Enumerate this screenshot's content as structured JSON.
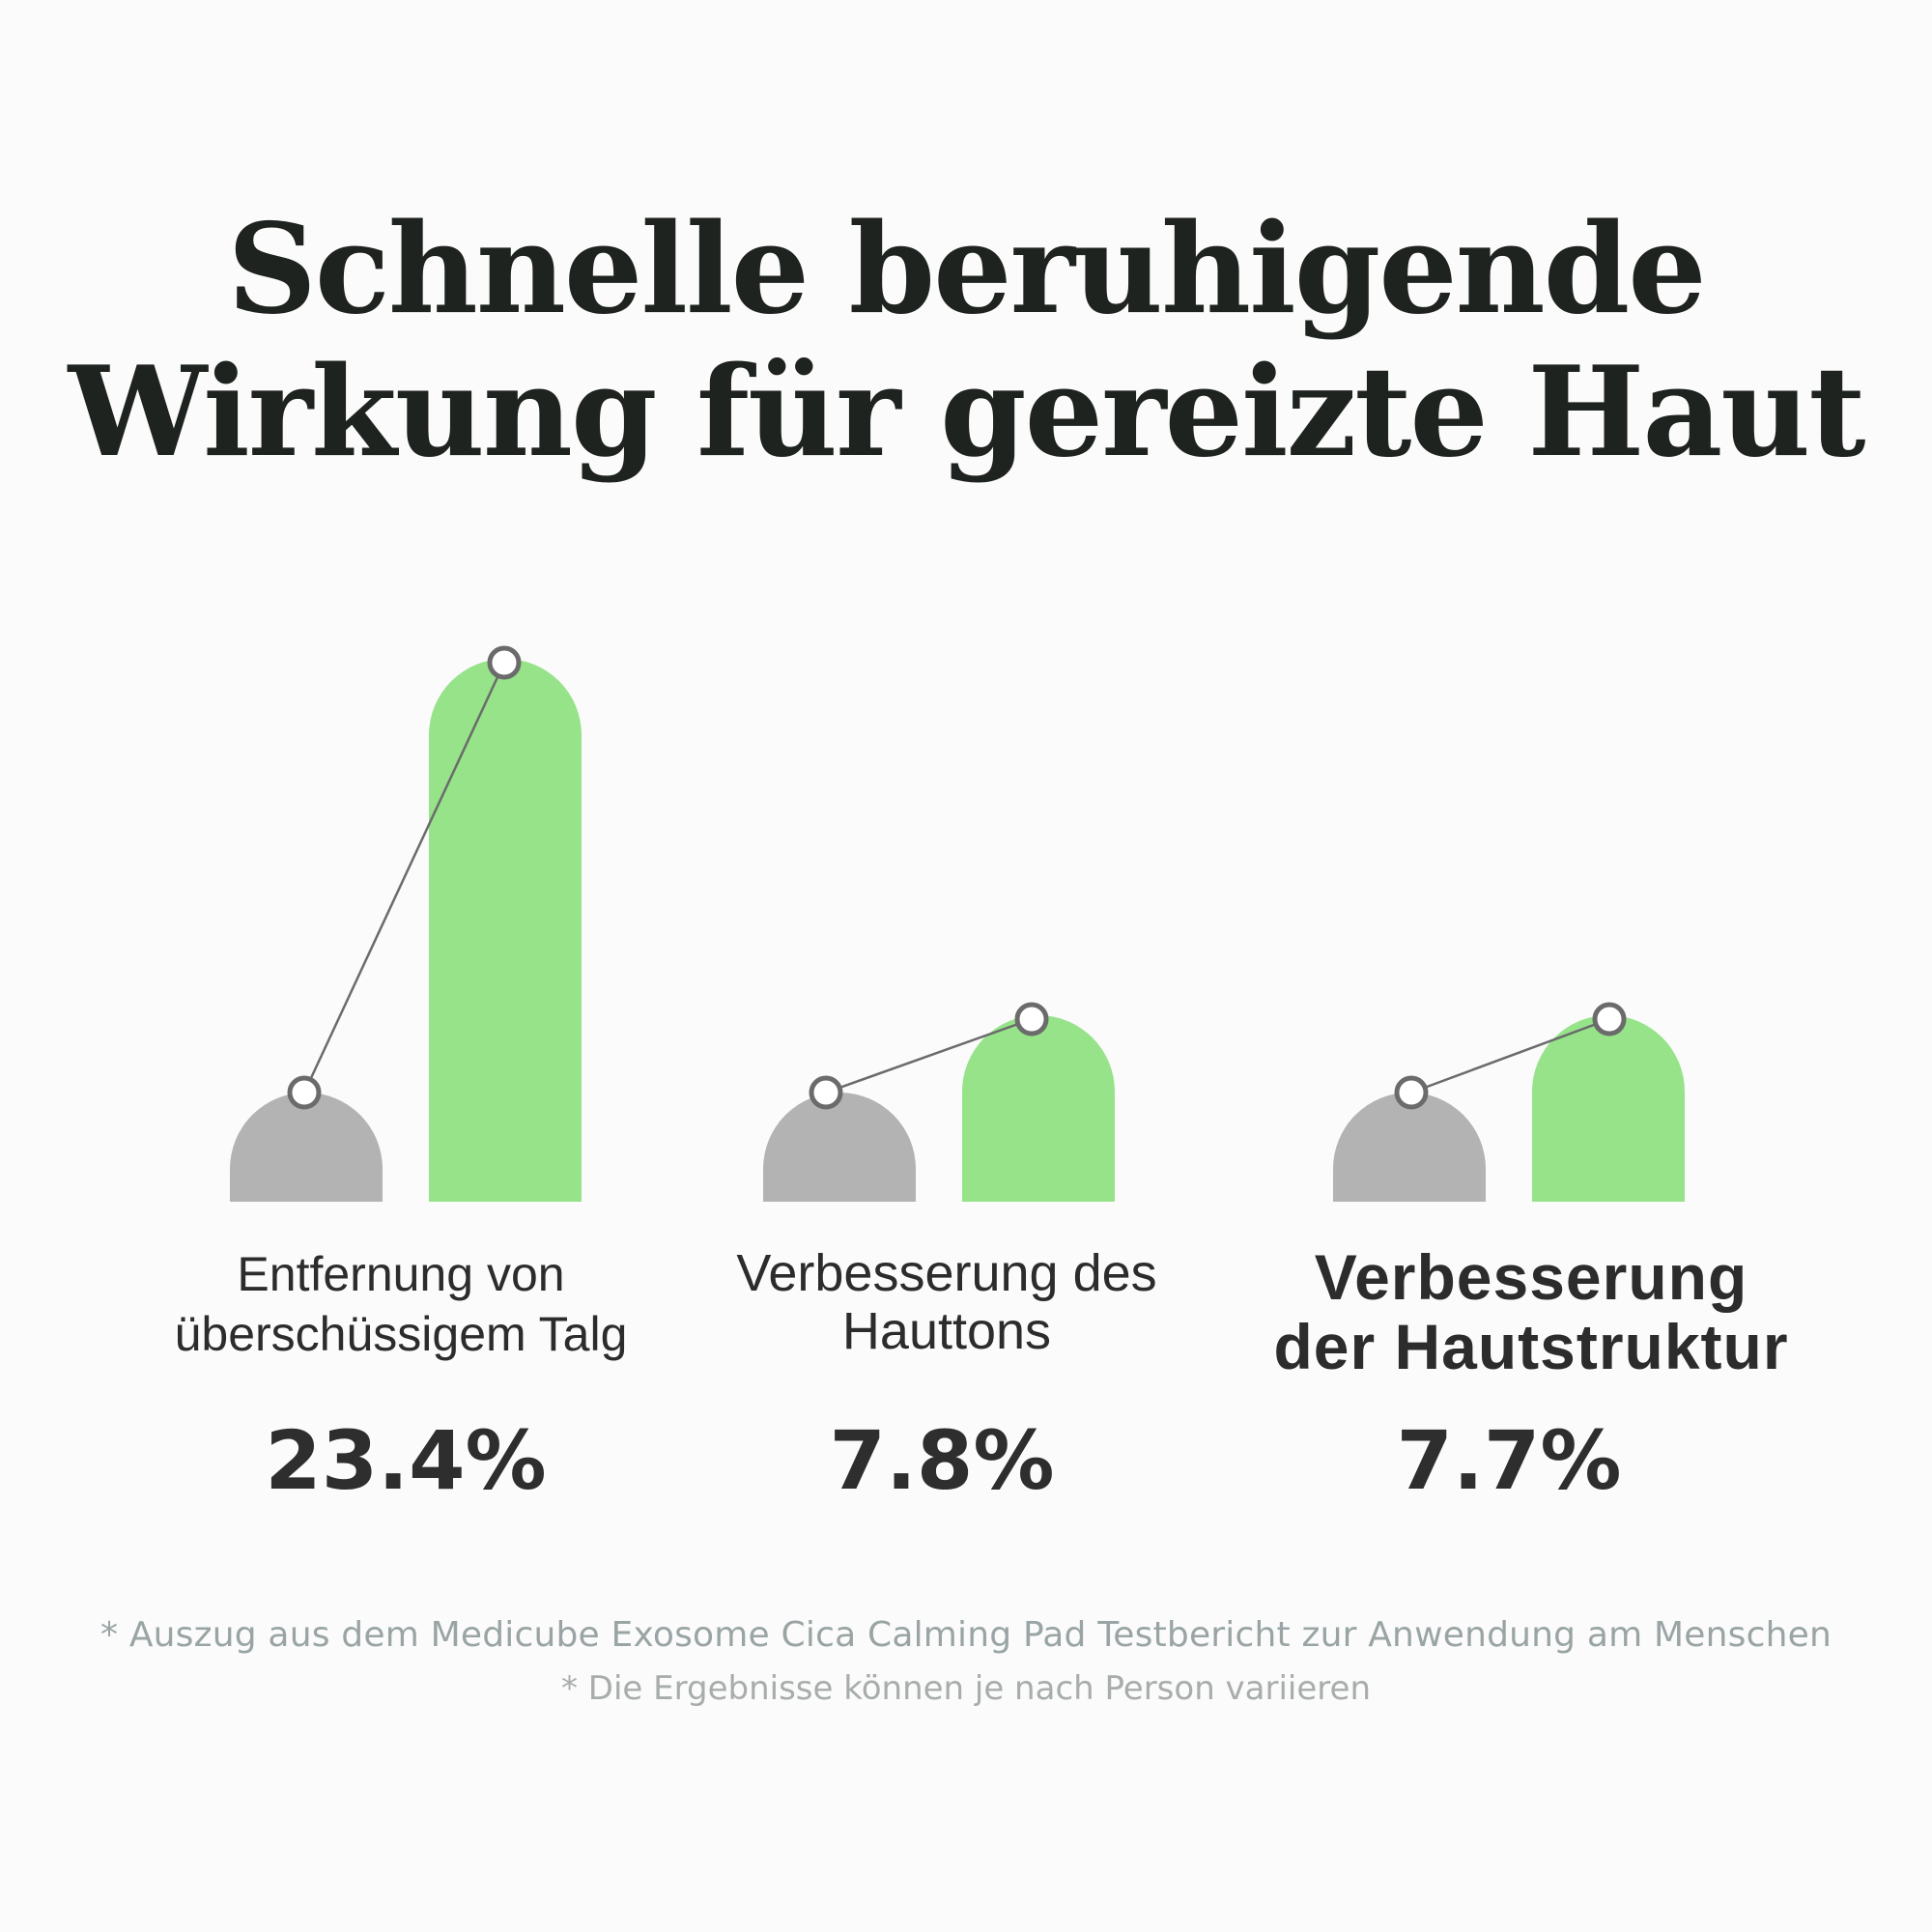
{
  "title": {
    "line1": "Schnelle beruhigende",
    "line2": "Wirkung für gereizte Haut"
  },
  "chart_data": {
    "type": "bar",
    "title": "Schnelle beruhigende Wirkung für gereizte Haut",
    "categories": [
      "Entfernung von überschüssigem Talg",
      "Verbesserung des Hauttons",
      "Verbesserung der Hautstruktur"
    ],
    "category_lines": [
      [
        "Entfernung von",
        "überschüssigem Talg"
      ],
      [
        "Verbesserung des",
        "Hauttons"
      ],
      [
        "Verbesserung",
        "der Hautstruktur"
      ]
    ],
    "value_labels": [
      "23.4%",
      "7.8%",
      "7.7%"
    ],
    "improvement_percent": [
      23.4,
      7.8,
      7.7
    ],
    "series": [
      {
        "values": [
          0,
          0,
          0
        ]
      },
      {
        "values": [
          23.4,
          7.8,
          7.7
        ]
      }
    ],
    "bar_colors": {
      "before": "#b3b3b3",
      "after": "#96e38a"
    },
    "connector_color": "#6b6b6b",
    "grid": false,
    "legend": "none",
    "xlabel": "",
    "ylabel": ""
  },
  "footnotes": [
    "* Auszug aus dem Medicube Exosome Cica Calming Pad Testbericht zur Anwendung am Menschen",
    "* Die Ergebnisse können je nach Person variieren"
  ]
}
